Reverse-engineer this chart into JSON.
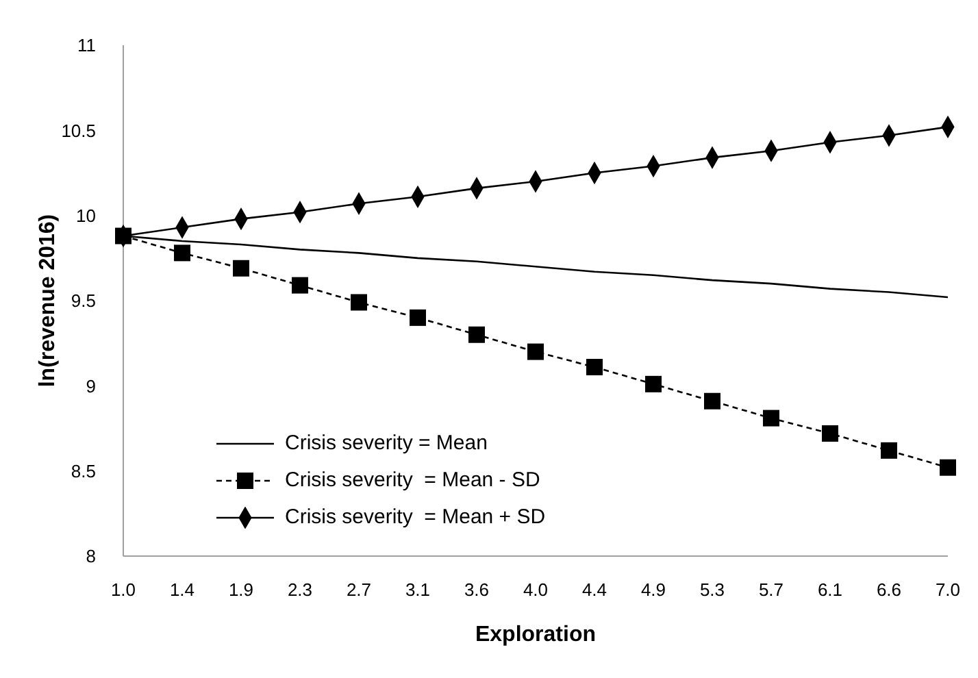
{
  "chart_data": {
    "type": "line",
    "xlabel": "Exploration",
    "ylabel": "ln(revenue 2016)",
    "categories": [
      "1.0",
      "1.4",
      "1.9",
      "2.3",
      "2.7",
      "3.1",
      "3.6",
      "4.0",
      "4.4",
      "4.9",
      "5.3",
      "5.7",
      "6.1",
      "6.6",
      "7.0"
    ],
    "series": [
      {
        "name": "Crisis severity = Mean",
        "color": "#000000",
        "marker": "none",
        "line_style": "solid",
        "values": [
          9.88,
          9.85,
          9.83,
          9.8,
          9.78,
          9.75,
          9.73,
          9.7,
          9.67,
          9.65,
          9.62,
          9.6,
          9.57,
          9.55,
          9.52
        ]
      },
      {
        "name": "Crisis severity  = Mean - SD",
        "color": "#000000",
        "marker": "square",
        "line_style": "dashed",
        "values": [
          9.88,
          9.78,
          9.69,
          9.59,
          9.49,
          9.4,
          9.3,
          9.2,
          9.11,
          9.01,
          8.91,
          8.81,
          8.72,
          8.62,
          8.52
        ]
      },
      {
        "name": "Crisis severity  = Mean + SD",
        "color": "#000000",
        "marker": "diamond",
        "line_style": "solid",
        "values": [
          9.88,
          9.93,
          9.98,
          10.02,
          10.07,
          10.11,
          10.16,
          10.2,
          10.25,
          10.29,
          10.34,
          10.38,
          10.43,
          10.47,
          10.52
        ]
      }
    ],
    "ylim": [
      8,
      11
    ],
    "yticks": [
      8,
      8.5,
      9,
      9.5,
      10,
      10.5,
      11
    ],
    "grid": false,
    "legend": "bottom left"
  }
}
